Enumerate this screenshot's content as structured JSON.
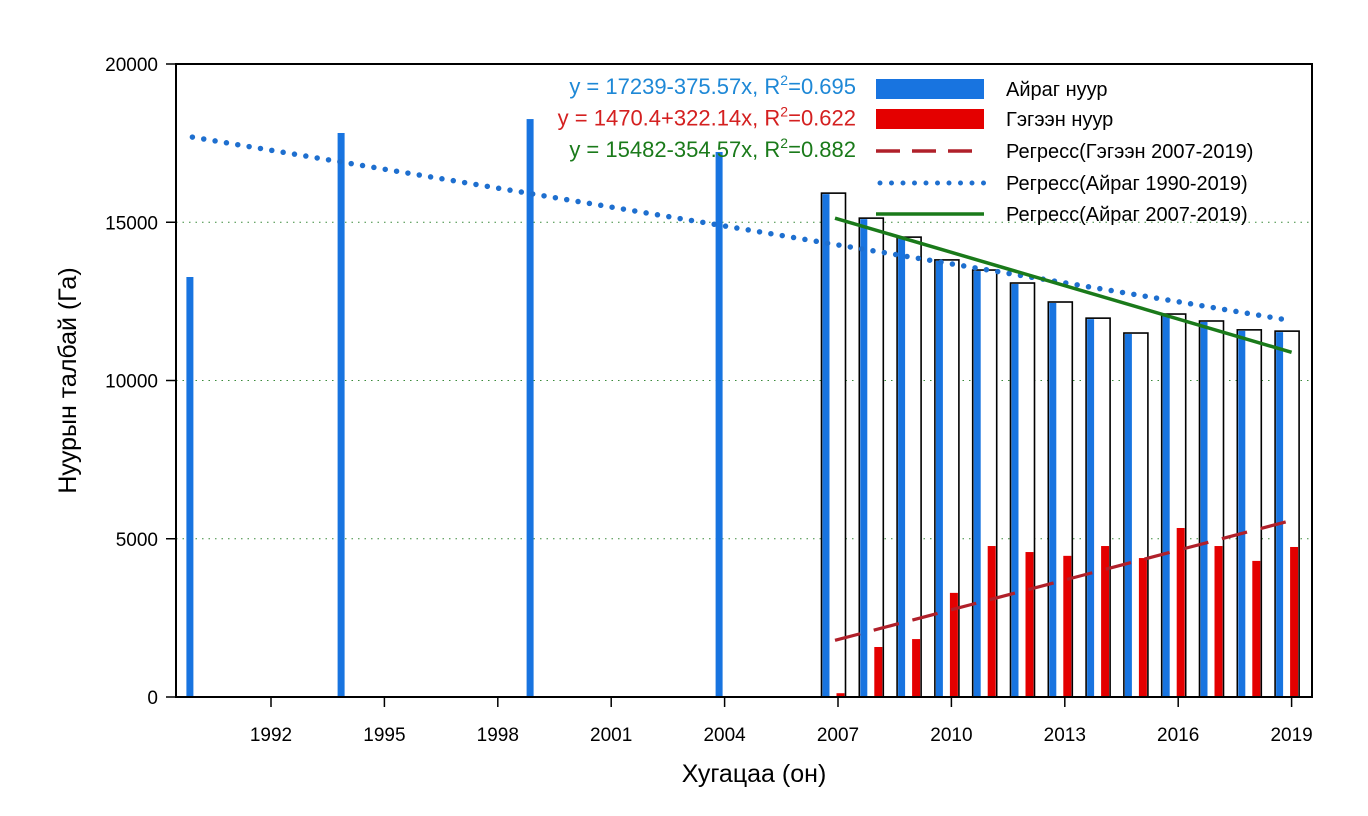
{
  "chart_data": {
    "type": "bar",
    "title": "",
    "xlabel": "Хугацаа (он)",
    "ylabel": "Нуурын талбай (Га)",
    "xlim": [
      1989.4,
      2019.5
    ],
    "ylim": [
      0,
      20000
    ],
    "yticks": [
      0,
      5000,
      10000,
      15000,
      20000
    ],
    "xticks": [
      1992,
      1995,
      1998,
      2001,
      2004,
      2007,
      2010,
      2013,
      2016,
      2019
    ],
    "grid": "horizontal dotted",
    "legend_position": "top-right",
    "series": [
      {
        "name": "Айраг нуур",
        "kind": "bar",
        "color": "#1874e0",
        "x": [
          1990,
          1994,
          1999,
          2004,
          2007,
          2008,
          2009,
          2010,
          2011,
          2012,
          2013,
          2014,
          2015,
          2016,
          2017,
          2018,
          2019
        ],
        "values": [
          13270,
          17820,
          18260,
          17220,
          15920,
          15130,
          14530,
          13810,
          13490,
          13080,
          12480,
          11970,
          11500,
          12100,
          11880,
          11600,
          11560
        ]
      },
      {
        "name": "Гэгээн нуур",
        "kind": "bar",
        "color": "#e40000",
        "x": [
          2007,
          2008,
          2009,
          2010,
          2011,
          2012,
          2013,
          2014,
          2015,
          2016,
          2017,
          2018,
          2019
        ],
        "values": [
          120,
          1580,
          1830,
          3290,
          4770,
          4580,
          4460,
          4770,
          4390,
          5340,
          4770,
          4300,
          4740
        ]
      },
      {
        "name": "Регресс(Гэгээн 2007-2019)",
        "kind": "line",
        "style": "dashed",
        "color": "#b0202a",
        "x": [
          2007,
          2019
        ],
        "values": [
          1790,
          5580
        ]
      },
      {
        "name": "Регресс(Айраг 1990-2019)",
        "kind": "line",
        "style": "dotted",
        "color": "#1e6fcf",
        "x": [
          1990,
          2019
        ],
        "values": [
          17690,
          11890
        ]
      },
      {
        "name": "Регресс(Айраг 2007-2019)",
        "kind": "line",
        "style": "solid",
        "color": "#1a7a1a",
        "x": [
          2007,
          2019
        ],
        "values": [
          15130,
          10890
        ]
      }
    ],
    "annotations": [
      {
        "text": "y = 17239-375.57x, R",
        "sup": "2",
        "tail": "=0.695",
        "color": "#1e88d6"
      },
      {
        "text": "y = 1470.4+322.14x, R",
        "sup": "2",
        "tail": "=0.622",
        "color": "#d42020"
      },
      {
        "text": "y = 15482-354.57x, R",
        "sup": "2",
        "tail": "=0.882",
        "color": "#1a7a1a"
      }
    ]
  }
}
